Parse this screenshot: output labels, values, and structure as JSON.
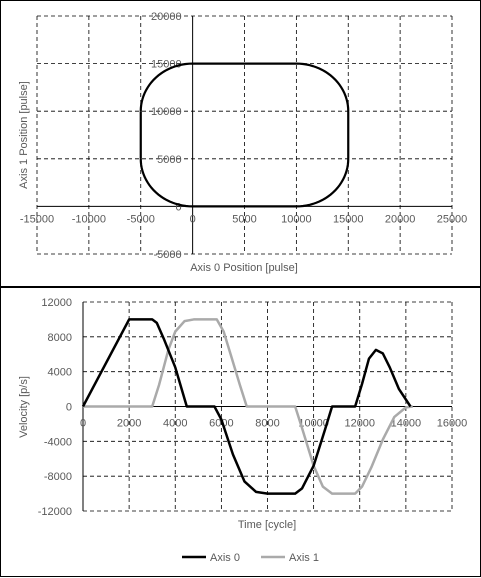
{
  "chart_data": [
    {
      "type": "line",
      "xlabel": "Axis 0 Position [pulse]",
      "ylabel": "Axis 1 Position [pulse]",
      "xlim": [
        -15000,
        25000
      ],
      "ylim": [
        -5000,
        20000
      ],
      "x_ticks": [
        -15000,
        -10000,
        -5000,
        0,
        5000,
        10000,
        15000,
        20000,
        25000
      ],
      "y_ticks": [
        -5000,
        0,
        5000,
        10000,
        15000,
        20000
      ],
      "x_tick_labels": [
        "-15000",
        "-10000",
        "-5000",
        "0",
        "5000",
        "10000",
        "15000",
        "20000",
        "25000"
      ],
      "y_tick_labels": [
        "-5000",
        "0",
        "5000",
        "10000",
        "15000",
        "20000"
      ],
      "grid": "dashed",
      "series": [
        {
          "color": "#000000",
          "path": {
            "straight": [
              [
                [
                  0,
                  15000
                ],
                [
                  10000,
                  15000
                ]
              ],
              [
                [
                  15000,
                  10000
                ],
                [
                  15000,
                  5000
                ]
              ],
              [
                [
                  10000,
                  0
                ],
                [
                  0,
                  0
                ]
              ],
              [
                [
                  -5000,
                  5000
                ],
                [
                  -5000,
                  10000
                ]
              ]
            ],
            "arcs": [
              {
                "center": [
                  10000,
                  10000
                ],
                "radius": 5000,
                "from_deg": 90,
                "to_deg": 0
              },
              {
                "center": [
                  10000,
                  5000
                ],
                "radius": 5000,
                "from_deg": 0,
                "to_deg": -90
              },
              {
                "center": [
                  0,
                  5000
                ],
                "radius": 5000,
                "from_deg": 270,
                "to_deg": 180
              },
              {
                "center": [
                  0,
                  10000
                ],
                "radius": 5000,
                "from_deg": 180,
                "to_deg": 90
              }
            ]
          }
        }
      ]
    },
    {
      "type": "line",
      "xlabel": "Time [cycle]",
      "ylabel": "Velocity [p/s]",
      "xlim": [
        0,
        16000
      ],
      "ylim": [
        -12000,
        12000
      ],
      "x_ticks": [
        0,
        2000,
        4000,
        6000,
        8000,
        10000,
        12000,
        14000,
        16000
      ],
      "y_ticks": [
        -12000,
        -8000,
        -4000,
        0,
        4000,
        8000,
        12000
      ],
      "x_tick_labels": [
        "0",
        "2000",
        "4000",
        "6000",
        "8000",
        "10000",
        "12000",
        "14000",
        "16000"
      ],
      "y_tick_labels": [
        "-12000",
        "-8000",
        "-4000",
        "0",
        "4000",
        "8000",
        "12000"
      ],
      "grid": "dashed",
      "legend_position": "bottom",
      "series": [
        {
          "name": "Axis 0",
          "color": "#000000",
          "points": [
            [
              0,
              0
            ],
            [
              2000,
              10000
            ],
            [
              3000,
              10000
            ],
            [
              3200,
              9600
            ],
            [
              3500,
              7800
            ],
            [
              4000,
              4500
            ],
            [
              4500,
              0
            ],
            [
              5700,
              0
            ],
            [
              6000,
              -1500
            ],
            [
              6500,
              -5500
            ],
            [
              7000,
              -8600
            ],
            [
              7500,
              -9800
            ],
            [
              8000,
              -10000
            ],
            [
              9200,
              -10000
            ],
            [
              9500,
              -9400
            ],
            [
              10000,
              -6800
            ],
            [
              10500,
              -2600
            ],
            [
              10800,
              0
            ],
            [
              11800,
              0
            ],
            [
              12100,
              2600
            ],
            [
              12400,
              5500
            ],
            [
              12700,
              6500
            ],
            [
              13000,
              6100
            ],
            [
              13300,
              4500
            ],
            [
              13700,
              2000
            ],
            [
              14200,
              0
            ]
          ]
        },
        {
          "name": "Axis 1",
          "color": "#aaaaaa",
          "points": [
            [
              0,
              0
            ],
            [
              3000,
              0
            ],
            [
              3300,
              2500
            ],
            [
              3700,
              6500
            ],
            [
              4000,
              8600
            ],
            [
              4400,
              9800
            ],
            [
              4800,
              10000
            ],
            [
              5800,
              10000
            ],
            [
              6100,
              8600
            ],
            [
              6400,
              6000
            ],
            [
              6800,
              2500
            ],
            [
              7100,
              0
            ],
            [
              9200,
              0
            ],
            [
              9500,
              -2500
            ],
            [
              10000,
              -6800
            ],
            [
              10400,
              -9200
            ],
            [
              10800,
              -10000
            ],
            [
              11800,
              -10000
            ],
            [
              12100,
              -9200
            ],
            [
              12500,
              -7000
            ],
            [
              13000,
              -3800
            ],
            [
              13500,
              -1200
            ],
            [
              14000,
              -100
            ],
            [
              14300,
              0
            ]
          ]
        }
      ]
    }
  ]
}
